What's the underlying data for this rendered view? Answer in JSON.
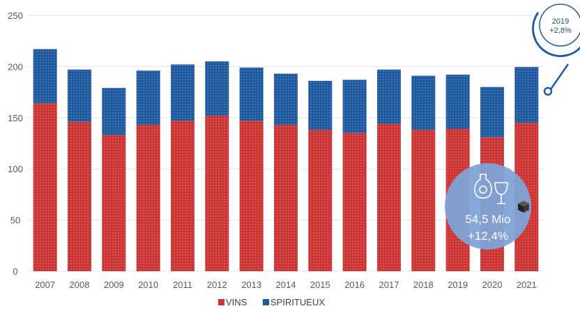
{
  "chart_data": {
    "type": "bar",
    "stacked": true,
    "categories": [
      "2007",
      "2008",
      "2009",
      "2010",
      "2011",
      "2012",
      "2013",
      "2014",
      "2015",
      "2016",
      "2017",
      "2018",
      "2019",
      "2020",
      "2021"
    ],
    "series": [
      {
        "name": "VINS",
        "color": "#cc3333",
        "values": [
          164,
          146,
          133,
          143,
          147,
          152,
          147,
          143,
          138,
          135,
          144,
          138,
          139,
          131,
          145
        ]
      },
      {
        "name": "SPIRITUEUX",
        "color": "#1f5aa0",
        "values": [
          53,
          51,
          46,
          53,
          55,
          53,
          52,
          50,
          48,
          52,
          53,
          53,
          53,
          49,
          54.5
        ]
      }
    ],
    "ylim": [
      0,
      250
    ],
    "yticks": [
      0,
      50,
      100,
      150,
      200,
      250
    ],
    "grid": true,
    "legend_position": "bottom",
    "callout": {
      "year": "2019",
      "change": "+2,8%"
    },
    "bubble": {
      "value": "54,5 Mio",
      "change": "+12,4%",
      "icons": [
        "bottle-glass-icon",
        "box-icon"
      ]
    }
  }
}
